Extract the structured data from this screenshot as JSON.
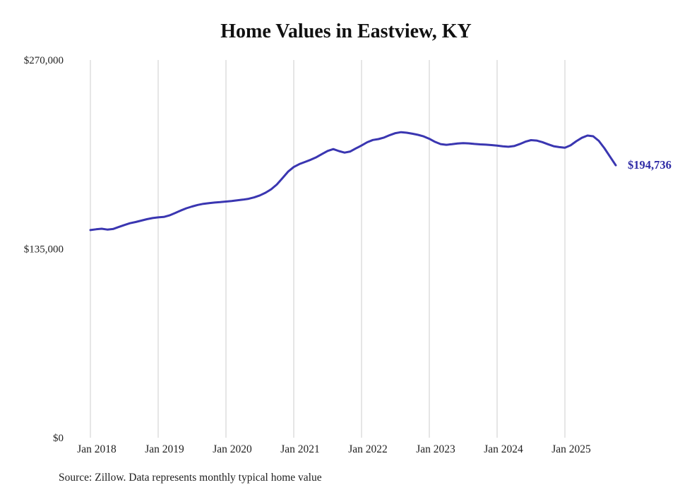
{
  "title": "Home Values in Eastview, KY",
  "source_note": "Source: Zillow. Data represents monthly typical home value",
  "chart_data": {
    "type": "line",
    "title": "Home Values in Eastview, KY",
    "xlabel": "",
    "ylabel": "",
    "ylim": [
      0,
      270000
    ],
    "grid": "vertical-only",
    "legend": "none",
    "line_color": "#3a36b1",
    "end_label_color": "#2e2ba6",
    "x_ticks": [
      "Jan 2018",
      "Jan 2019",
      "Jan 2020",
      "Jan 2021",
      "Jan 2022",
      "Jan 2023",
      "Jan 2024",
      "Jan 2025"
    ],
    "y_ticks": [
      "$0",
      "$135,000",
      "$270,000"
    ],
    "y_tick_values": [
      0,
      135000,
      270000
    ],
    "last_value": 194736,
    "last_value_label": "$194,736",
    "series": [
      {
        "name": "Monthly typical home value",
        "x_start": "Jan 2018",
        "x_interval": "month",
        "values": [
          148400,
          149000,
          149400,
          148800,
          149200,
          150600,
          152000,
          153300,
          154200,
          155200,
          156200,
          157000,
          157500,
          157800,
          158900,
          160600,
          162400,
          164000,
          165300,
          166400,
          167200,
          167700,
          168100,
          168400,
          168800,
          169200,
          169700,
          170200,
          170800,
          171800,
          173200,
          175100,
          177600,
          181000,
          185500,
          190200,
          193500,
          195600,
          197100,
          198700,
          200500,
          202800,
          205000,
          206300,
          204900,
          203800,
          204600,
          206800,
          208900,
          211200,
          212800,
          213500,
          214600,
          216300,
          217700,
          218400,
          218000,
          217300,
          216500,
          215400,
          213700,
          211500,
          209900,
          209400,
          209800,
          210300,
          210600,
          210400,
          210000,
          209700,
          209500,
          209200,
          208800,
          208300,
          208000,
          208500,
          209900,
          211600,
          212700,
          212400,
          211300,
          209800,
          208400,
          207700,
          207300,
          209000,
          211900,
          214400,
          216000,
          215500,
          212200,
          206900,
          200800,
          194736
        ]
      }
    ]
  }
}
